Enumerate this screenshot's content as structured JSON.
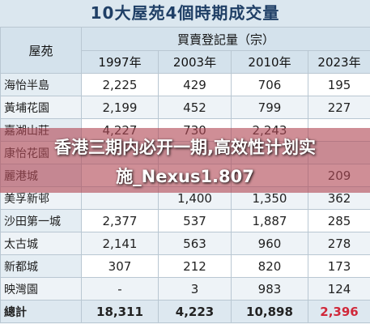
{
  "title": "10大屋苑4個時期成交量",
  "table": {
    "name_header": "屋苑",
    "group_header": "買賣登記量（宗）",
    "years": [
      "1997年",
      "2003年",
      "2010年",
      "2023年"
    ],
    "rows": [
      [
        "海怡半島",
        "2,225",
        "429",
        "706",
        "195"
      ],
      [
        "黃埔花園",
        "2,199",
        "452",
        "799",
        "227"
      ],
      [
        "嘉湖山莊",
        "4,227",
        "730",
        "2,243",
        null
      ],
      [
        "康怡花園",
        null,
        null,
        null,
        null
      ],
      [
        "麗港城",
        null,
        null,
        null,
        "209"
      ],
      [
        "美孚新邨",
        null,
        "1,400",
        "1,350",
        "362"
      ],
      [
        "沙田第一城",
        "2,377",
        "537",
        "1,887",
        "285"
      ],
      [
        "太古城",
        "2,141",
        "563",
        "960",
        "278"
      ],
      [
        "新都城",
        "307",
        "212",
        "820",
        "173"
      ],
      [
        "映灣園",
        "-",
        "3",
        "983",
        "124"
      ]
    ],
    "total": [
      "總計",
      "18,311",
      "4,223",
      "10,898",
      "2,396"
    ]
  },
  "banner": {
    "line1": "香港三期内必开一期,高效性计划实",
    "line2": "施_Nexus1.807"
  }
}
